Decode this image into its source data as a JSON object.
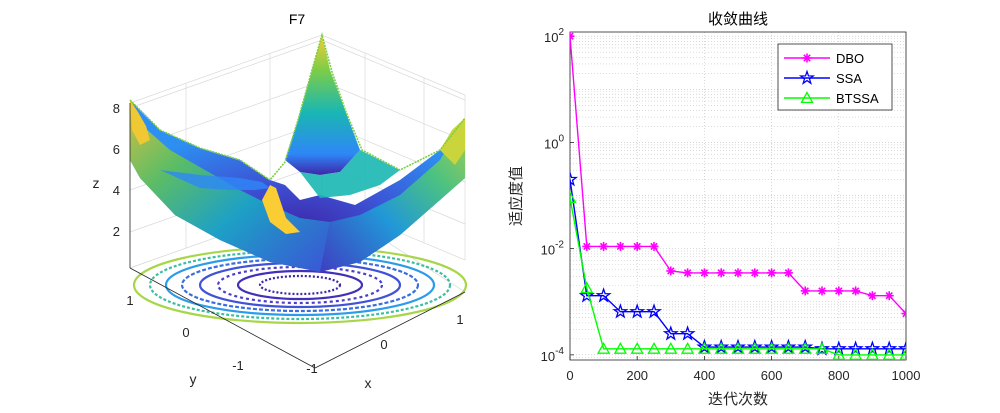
{
  "chart_data": [
    {
      "type": "surface",
      "title": "F7",
      "xlabel": "x",
      "ylabel": "y",
      "zlabel": "z",
      "xlim": [
        -1.28,
        1.28
      ],
      "ylim": [
        -1.28,
        1.28
      ],
      "zlim": [
        0,
        9
      ],
      "xticks": [
        "-1",
        "0",
        "1"
      ],
      "yticks": [
        "-1",
        "0",
        "1"
      ],
      "zticks": [
        "2",
        "4",
        "6",
        "8"
      ],
      "colormap": "parula",
      "has_contour_projection": true,
      "colors": [
        "#3e26a8",
        "#2e87f7",
        "#1ab7b2",
        "#7ccd48",
        "#f9cd33"
      ]
    },
    {
      "type": "line",
      "title": "收敛曲线",
      "xlabel": "迭代次数",
      "ylabel": "适应度值",
      "yscale": "log",
      "xlim": [
        0,
        1000
      ],
      "ylim": [
        8e-05,
        120
      ],
      "xticks": [
        "0",
        "200",
        "400",
        "600",
        "800",
        "1000"
      ],
      "yticks": [
        {
          "base": "10",
          "exp": "2"
        },
        {
          "base": "10",
          "exp": "0"
        },
        {
          "base": "10",
          "exp": "-2"
        },
        {
          "base": "10",
          "exp": "-4"
        }
      ],
      "grid": true,
      "legend_position": "top-right",
      "x": [
        0,
        50,
        100,
        150,
        200,
        250,
        300,
        350,
        400,
        450,
        500,
        550,
        600,
        650,
        700,
        750,
        800,
        850,
        900,
        950,
        1000
      ],
      "series": [
        {
          "name": "DBO",
          "color": "#ff00ff",
          "marker": "asterisk",
          "values": [
            100,
            0.011,
            0.011,
            0.011,
            0.011,
            0.011,
            0.0038,
            0.0035,
            0.0035,
            0.0035,
            0.0035,
            0.0035,
            0.0035,
            0.0035,
            0.0016,
            0.0016,
            0.0016,
            0.0016,
            0.0013,
            0.0013,
            0.0006
          ]
        },
        {
          "name": "SSA",
          "color": "#0000ff",
          "marker": "star",
          "values": [
            0.2,
            0.0013,
            0.0013,
            0.00065,
            0.00065,
            0.00065,
            0.00025,
            0.00025,
            0.00014,
            0.00014,
            0.00014,
            0.00014,
            0.00014,
            0.00014,
            0.00014,
            0.00013,
            0.00013,
            0.00013,
            0.00013,
            0.00013,
            0.00013
          ]
        },
        {
          "name": "BTSSA",
          "color": "#00ff00",
          "marker": "triangle",
          "values": [
            0.09,
            0.0018,
            0.00013,
            0.00013,
            0.00013,
            0.00013,
            0.00013,
            0.00013,
            0.00013,
            0.00013,
            0.00013,
            0.00013,
            0.00013,
            0.00013,
            0.00013,
            0.00013,
            0.0001,
            0.0001,
            0.0001,
            0.0001,
            0.0001
          ]
        }
      ]
    }
  ]
}
